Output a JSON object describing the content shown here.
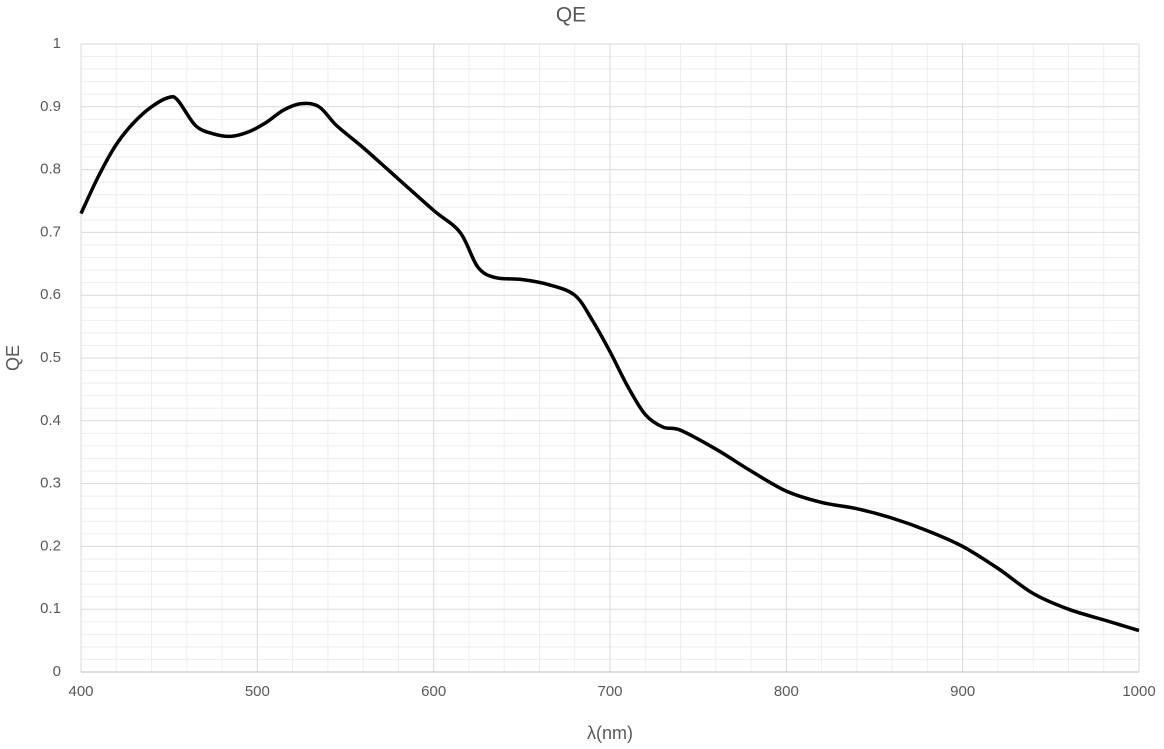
{
  "chart_data": {
    "type": "line",
    "title": "QE",
    "x_label": "λ(nm)",
    "y_label": "QE",
    "x": [
      400,
      410,
      420,
      430,
      440,
      450,
      455,
      465,
      475,
      485,
      495,
      505,
      515,
      525,
      535,
      545,
      560,
      580,
      600,
      615,
      625,
      635,
      650,
      665,
      680,
      690,
      700,
      710,
      720,
      730,
      740,
      760,
      780,
      800,
      820,
      840,
      860,
      880,
      900,
      920,
      940,
      960,
      980,
      1000
    ],
    "series": [
      {
        "name": "QE",
        "color": "#000000",
        "values": [
          0.73,
          0.79,
          0.84,
          0.875,
          0.9,
          0.915,
          0.91,
          0.87,
          0.857,
          0.853,
          0.86,
          0.875,
          0.895,
          0.905,
          0.9,
          0.87,
          0.835,
          0.785,
          0.735,
          0.7,
          0.645,
          0.628,
          0.625,
          0.617,
          0.6,
          0.56,
          0.51,
          0.455,
          0.41,
          0.39,
          0.385,
          0.355,
          0.32,
          0.288,
          0.27,
          0.26,
          0.245,
          0.225,
          0.2,
          0.165,
          0.125,
          0.1,
          0.083,
          0.066
        ]
      }
    ],
    "xlim": [
      400,
      1000
    ],
    "xticks": [
      400,
      500,
      600,
      700,
      800,
      900,
      1000
    ],
    "ylim": [
      0,
      1
    ],
    "yticks": [
      0,
      0.1,
      0.2,
      0.3,
      0.4,
      0.5,
      0.6,
      0.7,
      0.8,
      0.9,
      1
    ],
    "minor_xticks": [
      420,
      440,
      460,
      480,
      520,
      540,
      560,
      580,
      620,
      640,
      660,
      680,
      720,
      740,
      760,
      780,
      820,
      840,
      860,
      880,
      920,
      940,
      960,
      980
    ],
    "minor_yticks": [
      0.02,
      0.04,
      0.06,
      0.08,
      0.12,
      0.14,
      0.16,
      0.18,
      0.22,
      0.24,
      0.26,
      0.28,
      0.32,
      0.34,
      0.36,
      0.38,
      0.42,
      0.44,
      0.46,
      0.48,
      0.52,
      0.54,
      0.56,
      0.58,
      0.62,
      0.64,
      0.66,
      0.68,
      0.72,
      0.74,
      0.76,
      0.78,
      0.82,
      0.84,
      0.86,
      0.88,
      0.92,
      0.94,
      0.96,
      0.98
    ],
    "grid": true
  }
}
